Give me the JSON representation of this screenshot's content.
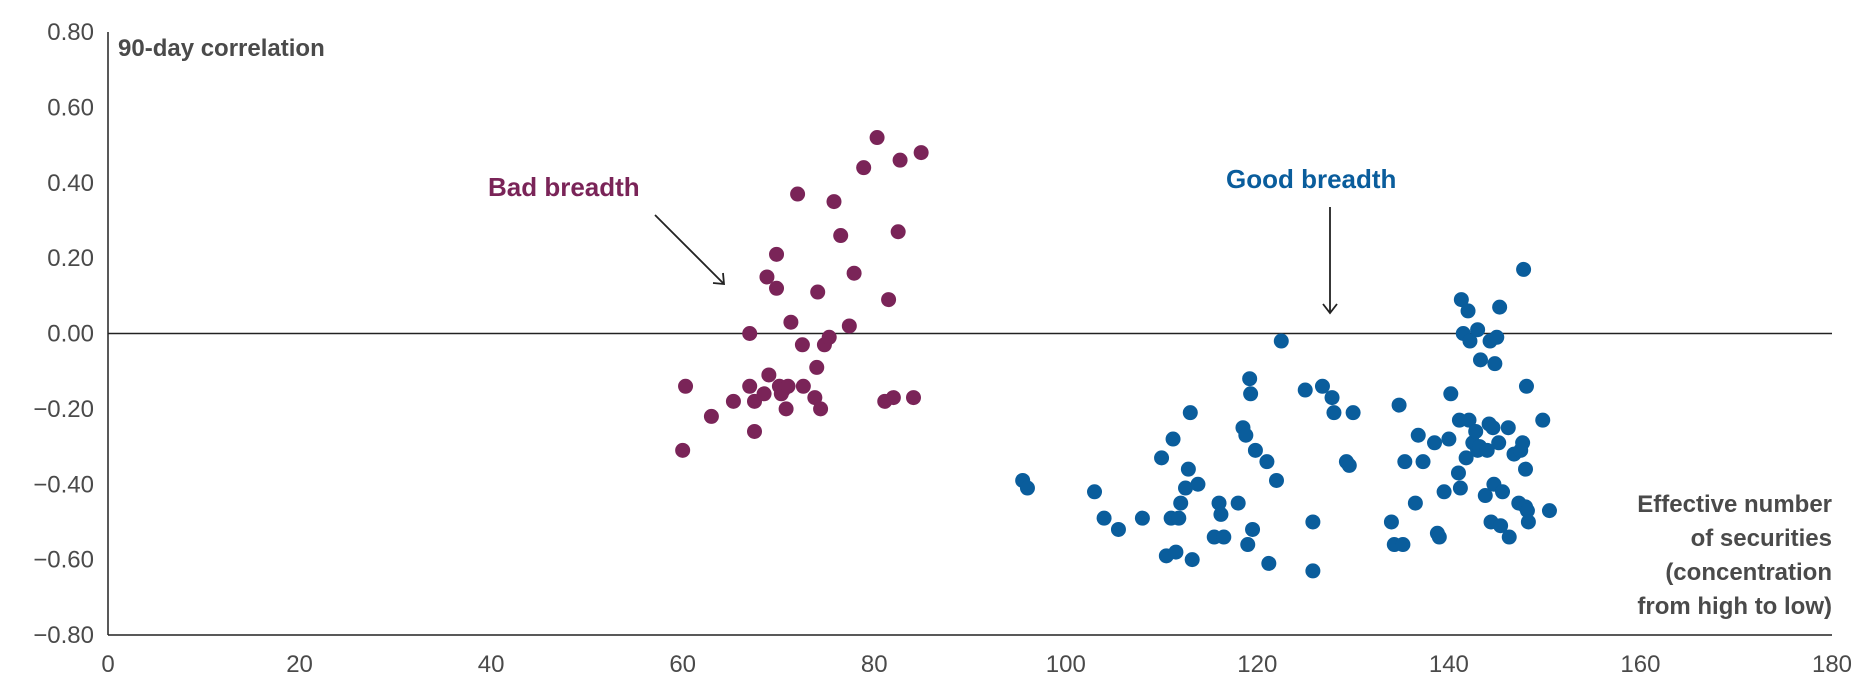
{
  "chart_data": {
    "type": "scatter",
    "ylabel": "90-day correlation",
    "xlabel_lines": [
      "Effective number",
      "of securities",
      "(concentration",
      "from high to low)"
    ],
    "xlim": [
      0,
      180
    ],
    "ylim": [
      -0.8,
      0.8
    ],
    "x_ticks": [
      0,
      20,
      40,
      60,
      80,
      100,
      120,
      140,
      160,
      180
    ],
    "x_tick_labels": [
      "0",
      "20",
      "40",
      "60",
      "80",
      "100",
      "120",
      "140",
      "160",
      "180"
    ],
    "y_ticks": [
      0.8,
      0.6,
      0.4,
      0.2,
      0.0,
      -0.2,
      -0.4,
      -0.6,
      -0.8
    ],
    "y_tick_labels": [
      "0.80",
      "0.60",
      "0.40",
      "0.20",
      "0.00",
      "−0.20",
      "−0.40",
      "−0.60",
      "−0.80"
    ],
    "grid": false,
    "reference_line_y": 0,
    "series": [
      {
        "name": "Bad breadth",
        "color": "#7a2458",
        "points": [
          [
            60,
            -0.31
          ],
          [
            60.3,
            -0.14
          ],
          [
            63,
            -0.22
          ],
          [
            65.3,
            -0.18
          ],
          [
            67,
            0.0
          ],
          [
            67,
            -0.14
          ],
          [
            67.5,
            -0.26
          ],
          [
            67.5,
            -0.18
          ],
          [
            68.5,
            -0.16
          ],
          [
            68.8,
            0.15
          ],
          [
            69,
            -0.11
          ],
          [
            69.8,
            0.12
          ],
          [
            69.8,
            0.21
          ],
          [
            70.1,
            -0.14
          ],
          [
            70.3,
            -0.16
          ],
          [
            70.5,
            -0.15
          ],
          [
            70.8,
            -0.2
          ],
          [
            71,
            -0.14
          ],
          [
            71.3,
            0.03
          ],
          [
            72,
            0.37
          ],
          [
            72.5,
            -0.03
          ],
          [
            72.6,
            -0.14
          ],
          [
            73.8,
            -0.17
          ],
          [
            74,
            -0.09
          ],
          [
            74.1,
            0.11
          ],
          [
            74.4,
            -0.2
          ],
          [
            74.8,
            -0.03
          ],
          [
            75.3,
            -0.01
          ],
          [
            75.8,
            0.35
          ],
          [
            76.5,
            0.26
          ],
          [
            77.4,
            0.02
          ],
          [
            77.9,
            0.16
          ],
          [
            78.9,
            0.44
          ],
          [
            80.3,
            0.52
          ],
          [
            81.1,
            -0.18
          ],
          [
            81.5,
            0.09
          ],
          [
            82,
            -0.17
          ],
          [
            82.5,
            0.27
          ],
          [
            82.7,
            0.46
          ],
          [
            84.1,
            -0.17
          ],
          [
            84.9,
            0.48
          ]
        ]
      },
      {
        "name": "Good breadth",
        "color": "#0a5d9c",
        "points": [
          [
            95.5,
            -0.39
          ],
          [
            96,
            -0.41
          ],
          [
            103,
            -0.42
          ],
          [
            104,
            -0.49
          ],
          [
            105.5,
            -0.52
          ],
          [
            108,
            -0.49
          ],
          [
            110,
            -0.33
          ],
          [
            110.5,
            -0.59
          ],
          [
            111,
            -0.49
          ],
          [
            111.2,
            -0.28
          ],
          [
            111.5,
            -0.58
          ],
          [
            111.8,
            -0.49
          ],
          [
            112,
            -0.45
          ],
          [
            112.5,
            -0.41
          ],
          [
            112.8,
            -0.36
          ],
          [
            113,
            -0.21
          ],
          [
            113.2,
            -0.6
          ],
          [
            113.8,
            -0.4
          ],
          [
            115.5,
            -0.54
          ],
          [
            116,
            -0.45
          ],
          [
            116.2,
            -0.48
          ],
          [
            116.5,
            -0.54
          ],
          [
            118,
            -0.45
          ],
          [
            118.5,
            -0.25
          ],
          [
            118.8,
            -0.27
          ],
          [
            119,
            -0.56
          ],
          [
            119.2,
            -0.12
          ],
          [
            119.3,
            -0.16
          ],
          [
            119.5,
            -0.52
          ],
          [
            119.8,
            -0.31
          ],
          [
            121,
            -0.34
          ],
          [
            121.2,
            -0.61
          ],
          [
            122,
            -0.39
          ],
          [
            122.5,
            -0.02
          ],
          [
            125,
            -0.15
          ],
          [
            125.8,
            -0.5
          ],
          [
            125.8,
            -0.63
          ],
          [
            126.8,
            -0.14
          ],
          [
            127.8,
            -0.17
          ],
          [
            128,
            -0.21
          ],
          [
            129.3,
            -0.34
          ],
          [
            129.6,
            -0.35
          ],
          [
            130,
            -0.21
          ],
          [
            134,
            -0.5
          ],
          [
            134.3,
            -0.56
          ],
          [
            134.8,
            -0.19
          ],
          [
            135.2,
            -0.56
          ],
          [
            135.4,
            -0.34
          ],
          [
            136.5,
            -0.45
          ],
          [
            136.8,
            -0.27
          ],
          [
            137.3,
            -0.34
          ],
          [
            138.5,
            -0.29
          ],
          [
            138.8,
            -0.53
          ],
          [
            139,
            -0.54
          ],
          [
            139.5,
            -0.42
          ],
          [
            140,
            -0.28
          ],
          [
            140.2,
            -0.16
          ],
          [
            141,
            -0.37
          ],
          [
            141.1,
            -0.23
          ],
          [
            141.2,
            -0.41
          ],
          [
            141.3,
            0.09
          ],
          [
            141.5,
            0.0
          ],
          [
            141.8,
            -0.33
          ],
          [
            142,
            0.06
          ],
          [
            142.1,
            -0.23
          ],
          [
            142.2,
            -0.02
          ],
          [
            142.5,
            -0.29
          ],
          [
            142.8,
            -0.26
          ],
          [
            143,
            0.01
          ],
          [
            143,
            -0.31
          ],
          [
            143.2,
            -0.3
          ],
          [
            143.3,
            -0.07
          ],
          [
            143.8,
            -0.43
          ],
          [
            144,
            -0.31
          ],
          [
            144.2,
            -0.24
          ],
          [
            144.3,
            -0.02
          ],
          [
            144.4,
            -0.5
          ],
          [
            144.6,
            -0.25
          ],
          [
            144.7,
            -0.4
          ],
          [
            144.8,
            -0.08
          ],
          [
            145,
            -0.01
          ],
          [
            145.2,
            -0.29
          ],
          [
            145.3,
            0.07
          ],
          [
            145.4,
            -0.51
          ],
          [
            145.6,
            -0.42
          ],
          [
            146.2,
            -0.25
          ],
          [
            146.3,
            -0.54
          ],
          [
            146.8,
            -0.32
          ],
          [
            147.3,
            -0.45
          ],
          [
            147.5,
            -0.31
          ],
          [
            147.7,
            -0.29
          ],
          [
            147.8,
            0.17
          ],
          [
            148,
            -0.46
          ],
          [
            148,
            -0.36
          ],
          [
            148.1,
            -0.14
          ],
          [
            148.2,
            -0.47
          ],
          [
            148.3,
            -0.5
          ],
          [
            149.8,
            -0.23
          ],
          [
            150.5,
            -0.47
          ]
        ]
      }
    ],
    "annotations": [
      {
        "text": "Bad breadth",
        "color": "#7a2458"
      },
      {
        "text": "Good breadth",
        "color": "#0a5d9c"
      }
    ]
  }
}
